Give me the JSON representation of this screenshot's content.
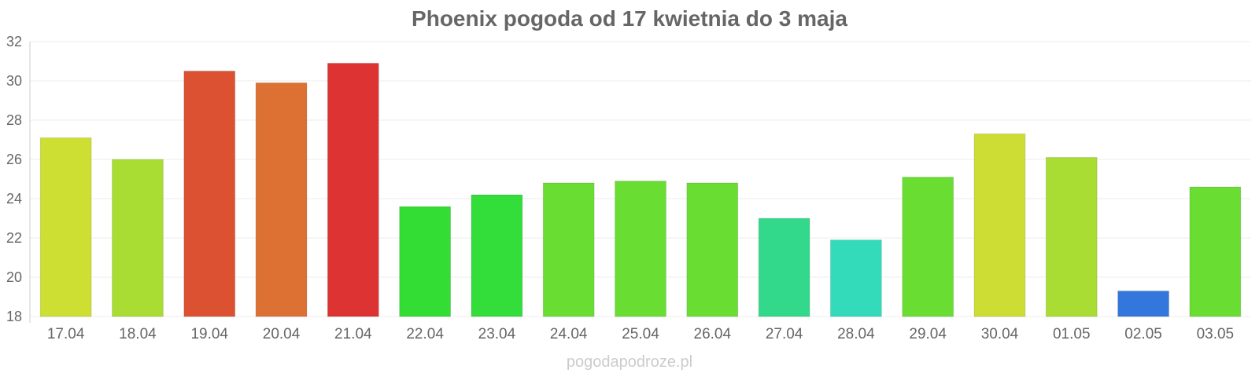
{
  "chart_data": {
    "type": "bar",
    "title": "Phoenix pogoda od 17 kwietnia do 3 maja",
    "xlabel": "",
    "ylabel": "",
    "ylim": [
      18,
      32
    ],
    "yticks": [
      18,
      20,
      22,
      24,
      26,
      28,
      30,
      32
    ],
    "grid": true,
    "legend": "none",
    "categories": [
      "17.04",
      "18.04",
      "19.04",
      "20.04",
      "21.04",
      "22.04",
      "23.04",
      "24.04",
      "25.04",
      "26.04",
      "27.04",
      "28.04",
      "29.04",
      "30.04",
      "01.05",
      "02.05",
      "03.05"
    ],
    "values": [
      27.1,
      26.0,
      30.5,
      29.9,
      30.9,
      23.6,
      24.2,
      24.8,
      24.9,
      24.8,
      23.0,
      21.9,
      25.1,
      27.3,
      26.1,
      19.3,
      24.6
    ],
    "colors": [
      "#cddf33",
      "#aadd33",
      "#dd5133",
      "#dd7033",
      "#dd3333",
      "#33dd33",
      "#33dd3a",
      "#6add33",
      "#6add33",
      "#6add33",
      "#33d98a",
      "#33dbbb",
      "#6add33",
      "#cddd33",
      "#aadd33",
      "#3377dd",
      "#6add33"
    ]
  },
  "watermark": "pogodapodroze.pl"
}
